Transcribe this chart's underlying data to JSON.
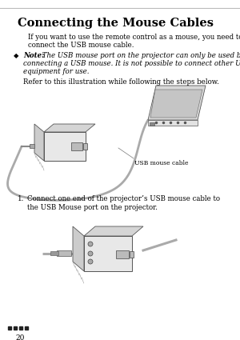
{
  "bg_color": "#ffffff",
  "page_number": "20",
  "title": "Connecting the Mouse Cables",
  "body_text_1a": "If you want to use the remote control as a mouse, you need to",
  "body_text_1b": "connect the USB mouse cable.",
  "note_bold": "Note:",
  "note_line1": " The USB mouse port on the projector can only be used by",
  "note_line2": "connecting a USB mouse. It is not possible to connect other USB",
  "note_line3": "equipment for use.",
  "refer_text": "Refer to this illustration while following the steps below.",
  "usb_label": "USB mouse cable",
  "step1a": "Connect one end of the projector’s USB mouse cable to",
  "step1b": "the USB Mouse port on the projector.",
  "top_line_color": "#bbbbbb",
  "text_color": "#000000",
  "cable_color": "#aaaaaa",
  "proj_face_color": "#e8e8e8",
  "proj_side_color": "#cccccc",
  "proj_top_color": "#d5d5d5",
  "port_color": "#bbbbbb",
  "laptop_color": "#d8d8d8",
  "laptop_face_color": "#c5c5c5"
}
